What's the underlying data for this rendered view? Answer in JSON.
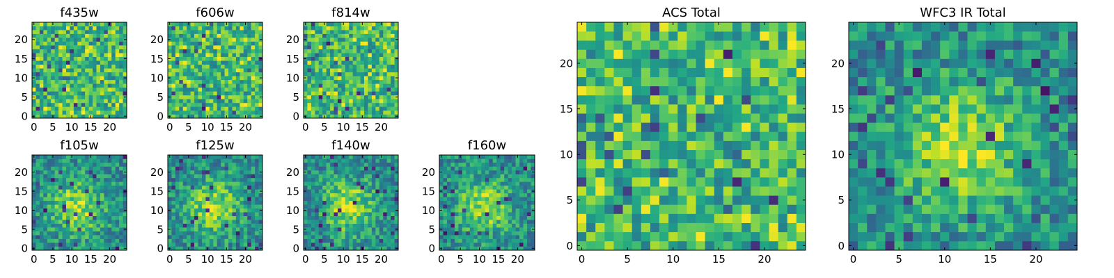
{
  "figure": {
    "colormap": "viridis",
    "panels": [
      {
        "id": "f435w",
        "title": "f435w",
        "kind": "small",
        "xticks": [
          "0",
          "5",
          "10",
          "15",
          "20"
        ],
        "yticks": [
          "0",
          "5",
          "10",
          "15",
          "20"
        ],
        "pattern": "noise",
        "seed": 11
      },
      {
        "id": "f606w",
        "title": "f606w",
        "kind": "small",
        "xticks": [
          "0",
          "5",
          "10",
          "15",
          "20"
        ],
        "yticks": [
          "0",
          "5",
          "10",
          "15",
          "20"
        ],
        "pattern": "noise",
        "seed": 23
      },
      {
        "id": "f814w",
        "title": "f814w",
        "kind": "small",
        "xticks": [
          "0",
          "5",
          "10",
          "15",
          "20"
        ],
        "yticks": [
          "0",
          "5",
          "10",
          "15",
          "20"
        ],
        "pattern": "noise",
        "seed": 37
      },
      {
        "id": "f105w",
        "title": "f105w",
        "kind": "small",
        "xticks": [
          "0",
          "5",
          "10",
          "15",
          "20"
        ],
        "yticks": [
          "0",
          "5",
          "10",
          "15",
          "20"
        ],
        "pattern": "blob",
        "seed": 41
      },
      {
        "id": "f125w",
        "title": "f125w",
        "kind": "small",
        "xticks": [
          "0",
          "5",
          "10",
          "15",
          "20"
        ],
        "yticks": [
          "0",
          "5",
          "10",
          "15",
          "20"
        ],
        "pattern": "blob",
        "seed": 53
      },
      {
        "id": "f140w",
        "title": "f140w",
        "kind": "small",
        "xticks": [
          "0",
          "5",
          "10",
          "15",
          "20"
        ],
        "yticks": [
          "0",
          "5",
          "10",
          "15",
          "20"
        ],
        "pattern": "blob",
        "seed": 67
      },
      {
        "id": "f160w",
        "title": "f160w",
        "kind": "small",
        "xticks": [
          "0",
          "5",
          "10",
          "15",
          "20"
        ],
        "yticks": [
          "0",
          "5",
          "10",
          "15",
          "20"
        ],
        "pattern": "blob",
        "seed": 79
      },
      {
        "id": "acs-total",
        "title": "ACS Total",
        "kind": "large",
        "xticks": [
          "0",
          "5",
          "10",
          "15",
          "20"
        ],
        "yticks": [
          "0",
          "5",
          "10",
          "15",
          "20"
        ],
        "pattern": "noise",
        "seed": 83
      },
      {
        "id": "wfc3-ir-total",
        "title": "WFC3 IR Total",
        "kind": "large",
        "xticks": [
          "0",
          "5",
          "10",
          "15",
          "20"
        ],
        "yticks": [
          "0",
          "5",
          "10",
          "15",
          "20"
        ],
        "pattern": "blob",
        "seed": 97
      }
    ]
  },
  "chart_data": {
    "type": "heatmap",
    "grid_size": [
      25,
      25
    ],
    "xlim": [
      -0.5,
      24.5
    ],
    "ylim": [
      -0.5,
      24.5
    ],
    "grid": false,
    "panels": [
      "f435w",
      "f606w",
      "f814w",
      "f105w",
      "f125w",
      "f140w",
      "f160w",
      "ACS Total",
      "WFC3 IR Total"
    ]
  }
}
